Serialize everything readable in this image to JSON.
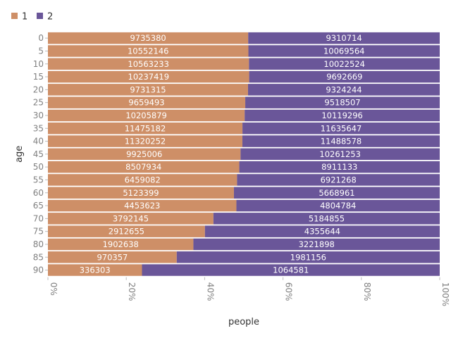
{
  "chart_data": {
    "type": "bar",
    "orientation": "horizontal",
    "stacked": "normalized",
    "xlabel": "people",
    "ylabel": "age",
    "xlim": [
      0,
      1
    ],
    "x_ticks": [
      "0%",
      "20%",
      "40%",
      "60%",
      "80%",
      "100%"
    ],
    "legend_position": "top-left",
    "categories": [
      "0",
      "5",
      "10",
      "15",
      "20",
      "25",
      "30",
      "35",
      "40",
      "45",
      "50",
      "55",
      "60",
      "65",
      "70",
      "75",
      "80",
      "85",
      "90"
    ],
    "series": [
      {
        "name": "1",
        "color": "#CE8F67",
        "values": [
          9735380,
          10552146,
          10563233,
          10237419,
          9731315,
          9659493,
          10205879,
          11475182,
          11320252,
          9925006,
          8507934,
          6459082,
          5123399,
          4453623,
          3792145,
          2912655,
          1902638,
          970357,
          336303
        ]
      },
      {
        "name": "2",
        "color": "#6A5699",
        "values": [
          9310714,
          10069564,
          10022524,
          9692669,
          9324244,
          9518507,
          10119296,
          11635647,
          11488578,
          10261253,
          8911133,
          6921268,
          5668961,
          4804784,
          5184855,
          4355644,
          3221898,
          1981156,
          1064581
        ]
      }
    ]
  }
}
